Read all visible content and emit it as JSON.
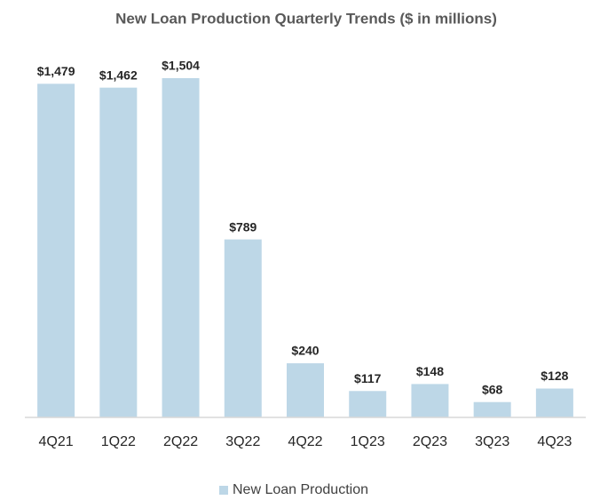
{
  "chart_data": {
    "type": "bar",
    "title": "New Loan Production Quarterly Trends ($ in millions)",
    "categories": [
      "4Q21",
      "1Q22",
      "2Q22",
      "3Q22",
      "4Q22",
      "1Q23",
      "2Q23",
      "3Q23",
      "4Q23"
    ],
    "series": [
      {
        "name": "New Loan Production",
        "color": "#bdd7e7",
        "values": [
          1479,
          1462,
          1504,
          789,
          240,
          117,
          148,
          68,
          128
        ],
        "value_labels": [
          "$1,479",
          "$1,462",
          "$1,504",
          "$789",
          "$240",
          "$117",
          "$148",
          "$68",
          "$128"
        ]
      }
    ],
    "legend": "bottom"
  }
}
